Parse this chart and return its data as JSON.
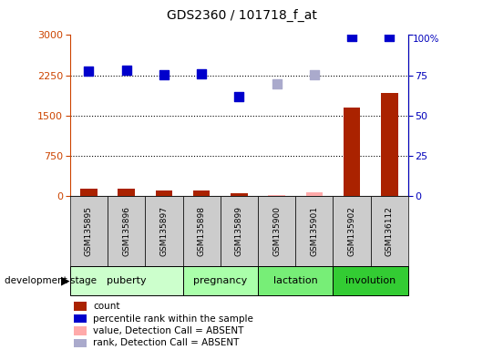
{
  "title": "GDS2360 / 101718_f_at",
  "samples": [
    "GSM135895",
    "GSM135896",
    "GSM135897",
    "GSM135898",
    "GSM135899",
    "GSM135900",
    "GSM135901",
    "GSM135902",
    "GSM136112"
  ],
  "count_values": [
    130,
    140,
    95,
    110,
    45,
    25,
    65,
    1640,
    1920
  ],
  "count_absent": [
    false,
    false,
    false,
    false,
    false,
    true,
    true,
    false,
    false
  ],
  "rank_values": [
    2320,
    2340,
    2255,
    2270,
    1860,
    2090,
    2255,
    2970,
    2970
  ],
  "rank_absent": [
    false,
    false,
    false,
    false,
    false,
    true,
    true,
    false,
    false
  ],
  "ylim_left": [
    0,
    3000
  ],
  "ylim_right": [
    0,
    100
  ],
  "yticks_left": [
    0,
    750,
    1500,
    2250,
    3000
  ],
  "yticks_right": [
    0,
    25,
    50,
    75,
    100
  ],
  "stages": [
    {
      "name": "puberty",
      "start": 0,
      "end": 2,
      "color": "#ccffcc"
    },
    {
      "name": "pregnancy",
      "start": 3,
      "end": 4,
      "color": "#aaffaa"
    },
    {
      "name": "lactation",
      "start": 5,
      "end": 6,
      "color": "#77ee77"
    },
    {
      "name": "involution",
      "start": 7,
      "end": 8,
      "color": "#33cc33"
    }
  ],
  "bar_color_present": "#aa2200",
  "bar_color_absent": "#ffaaaa",
  "dot_color_present": "#0000cc",
  "dot_color_absent": "#aaaacc",
  "dot_size": 55,
  "bar_width": 0.45,
  "grid_color": "black",
  "bg_color": "#ffffff",
  "left_label_color": "#cc4400",
  "right_label_color": "#0000bb",
  "legend_items": [
    {
      "label": "count",
      "color": "#aa2200"
    },
    {
      "label": "percentile rank within the sample",
      "color": "#0000cc"
    },
    {
      "label": "value, Detection Call = ABSENT",
      "color": "#ffaaaa"
    },
    {
      "label": "rank, Detection Call = ABSENT",
      "color": "#aaaacc"
    }
  ]
}
